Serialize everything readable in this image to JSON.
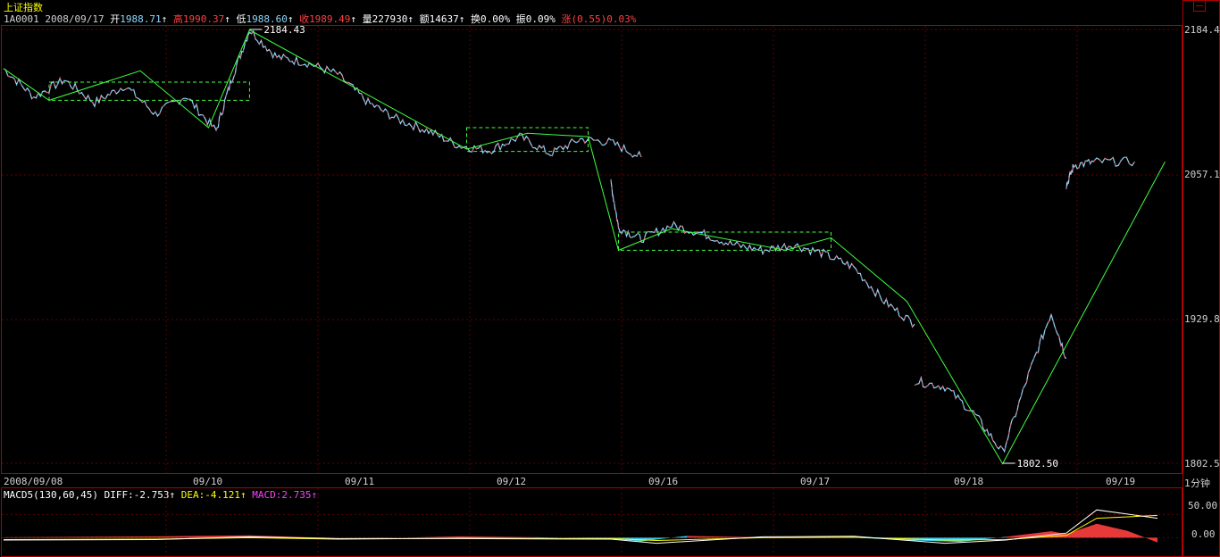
{
  "header": {
    "index_name": "上证指数",
    "code": "1A0001",
    "date": "2008/09/17",
    "open_label": "开",
    "open": "1988.71",
    "high_label": "高",
    "high": "1990.37",
    "low_label": "低",
    "low": "1988.60",
    "close_label": "收",
    "close": "1989.49",
    "volume_label": "量",
    "volume": "227930",
    "amount_label": "额",
    "amount": "14637",
    "turnover_label": "换",
    "turnover": "0.00%",
    "amplitude_label": "振",
    "amplitude": "0.09%",
    "change_label": "涨",
    "change": "(0.55)0.03%",
    "arrow": "↑"
  },
  "period_label": "1分钟",
  "macd_header": {
    "name": "MACD5(130,60,45)",
    "diff_label": "DIFF:",
    "diff": "-2.753",
    "dea_label": "DEA:",
    "dea": "-4.121",
    "macd_label": "MACD:",
    "macd": "2.735",
    "arrow": "↑"
  },
  "colors": {
    "background": "#000000",
    "border": "#b00000",
    "grid": "#600000",
    "price_up": "#ff4040",
    "price_down": "#8fd8ff",
    "zigzag": "#40ff40",
    "box": "#40ff40",
    "diff_line": "#ffffff",
    "dea_line": "#ffff00",
    "macd_pos": "#ff4040",
    "macd_neg": "#40e0ff"
  },
  "chart_data": {
    "type": "line",
    "x_tick_labels": [
      "2008/09/08",
      "09/10",
      "09/11",
      "09/12",
      "09/16",
      "09/17",
      "09/18",
      "09/19"
    ],
    "y_tick_labels": [
      "2184.4",
      "2057.1",
      "1929.8",
      "1802.5"
    ],
    "ylim": [
      1802.5,
      2184.4
    ],
    "annotations": [
      {
        "label": "2184.43",
        "x": 1.62,
        "y": 2184.43
      },
      {
        "label": "1802.50",
        "x": 6.58,
        "y": 1802.5
      }
    ],
    "price_segments": [
      {
        "x": [
          0.0,
          0.2,
          0.4,
          0.6,
          0.8,
          1.0,
          1.2,
          1.4,
          1.5,
          1.62,
          1.8,
          2.0,
          2.2
        ],
        "y": [
          2150,
          2125,
          2140,
          2120,
          2135,
          2110,
          2126,
          2095,
          2140,
          2184,
          2160,
          2155,
          2145
        ]
      },
      {
        "x": [
          2.2,
          2.4,
          2.6,
          2.8,
          3.0,
          3.2,
          3.4,
          3.6,
          3.8,
          4.0,
          4.2
        ],
        "y": [
          2145,
          2120,
          2105,
          2095,
          2082,
          2078,
          2090,
          2075,
          2088,
          2085,
          2072
        ]
      },
      {
        "x": [
          4.0,
          4.05,
          4.2,
          4.4,
          4.6,
          4.8,
          5.0,
          5.2,
          5.4,
          5.6,
          5.8,
          6.0
        ],
        "y": [
          2050,
          2010,
          2000,
          2012,
          2005,
          1995,
          1990,
          1995,
          1987,
          1975,
          1945,
          1925
        ]
      },
      {
        "x": [
          6.0,
          6.2,
          6.4,
          6.58,
          6.75,
          6.9,
          7.0
        ],
        "y": [
          1875,
          1870,
          1845,
          1812,
          1880,
          1935,
          1895
        ]
      },
      {
        "x": [
          7.0,
          7.05,
          7.2,
          7.45
        ],
        "y": [
          2047,
          2065,
          2068,
          2068
        ]
      }
    ],
    "zigzag": {
      "x": [
        0.0,
        0.3,
        0.9,
        1.35,
        1.62,
        3.05,
        3.45,
        3.85,
        4.05,
        4.4,
        5.15,
        5.45,
        5.95,
        6.58,
        7.65
      ],
      "y": [
        2150,
        2122,
        2148,
        2098,
        2184,
        2079,
        2093,
        2090,
        1990,
        2009,
        1990,
        2001,
        1945,
        1802,
        2068
      ]
    },
    "boxes": [
      {
        "x": [
          0.3,
          1.62
        ],
        "y": [
          2122,
          2138
        ]
      },
      {
        "x": [
          3.05,
          3.85
        ],
        "y": [
          2077,
          2098
        ]
      },
      {
        "x": [
          4.05,
          5.45
        ],
        "y": [
          1990,
          2006
        ]
      }
    ],
    "macd": {
      "ylim": [
        -30,
        70
      ],
      "y_tick_labels": [
        "50.00",
        "0.00"
      ],
      "diff": {
        "x": [
          0.0,
          1.0,
          1.62,
          2.2,
          3.0,
          4.0,
          4.3,
          5.0,
          5.6,
          6.2,
          6.6,
          7.0,
          7.2,
          7.6
        ],
        "y": [
          -5,
          -4,
          2,
          -2,
          -2,
          -3,
          -12,
          2,
          3,
          -12,
          -5,
          10,
          60,
          42
        ]
      },
      "dea": {
        "x": [
          0.0,
          1.0,
          1.62,
          2.2,
          3.0,
          4.0,
          4.3,
          5.0,
          5.6,
          6.2,
          6.6,
          7.0,
          7.2,
          7.6
        ],
        "y": [
          -4,
          -3,
          0,
          -3,
          -1,
          -2,
          -6,
          0,
          1,
          -5,
          -4,
          5,
          42,
          48
        ]
      },
      "histogram": {
        "x": [
          0.0,
          0.5,
          1.0,
          1.62,
          2.0,
          2.5,
          3.0,
          3.5,
          4.0,
          4.2,
          4.5,
          5.0,
          5.5,
          5.8,
          6.0,
          6.3,
          6.6,
          6.9,
          7.0,
          7.2,
          7.4,
          7.6
        ],
        "y": [
          1,
          2,
          3,
          5,
          1,
          -1,
          3,
          1,
          -2,
          -8,
          4,
          1,
          2,
          -3,
          -6,
          -9,
          2,
          14,
          8,
          30,
          15,
          -10
        ]
      }
    }
  }
}
